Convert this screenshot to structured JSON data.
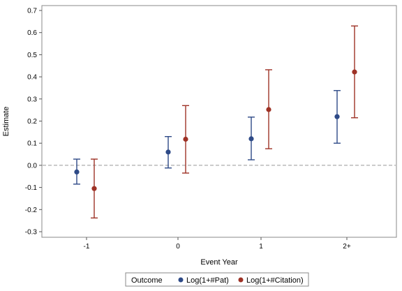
{
  "chart_data": {
    "type": "scatter",
    "xlabel": "Event Year",
    "ylabel": "Estimate",
    "categories": [
      "-1",
      "0",
      "1",
      "2+"
    ],
    "ylim": [
      -0.3,
      0.7
    ],
    "yticks": [
      "-0.3",
      "-0.2",
      "-0.1",
      "0.0",
      "0.1",
      "0.2",
      "0.3",
      "0.4",
      "0.5",
      "0.6",
      "0.7"
    ],
    "reference_line": {
      "y": 0.0,
      "style": "dashed"
    },
    "grid": false,
    "legend": {
      "title": "Outcome",
      "placement": "bottom"
    },
    "series": [
      {
        "name": "Log(1+#Pat)",
        "color": "#2e4a87",
        "estimate": [
          -0.03,
          0.06,
          0.12,
          0.22
        ],
        "lower": [
          -0.085,
          -0.012,
          0.025,
          0.1
        ],
        "upper": [
          0.028,
          0.13,
          0.218,
          0.338
        ]
      },
      {
        "name": "Log(1+#Citation)",
        "color": "#9e3226",
        "estimate": [
          -0.105,
          0.118,
          0.252,
          0.422
        ],
        "lower": [
          -0.238,
          -0.035,
          0.075,
          0.215
        ],
        "upper": [
          0.028,
          0.27,
          0.432,
          0.63
        ]
      }
    ]
  }
}
